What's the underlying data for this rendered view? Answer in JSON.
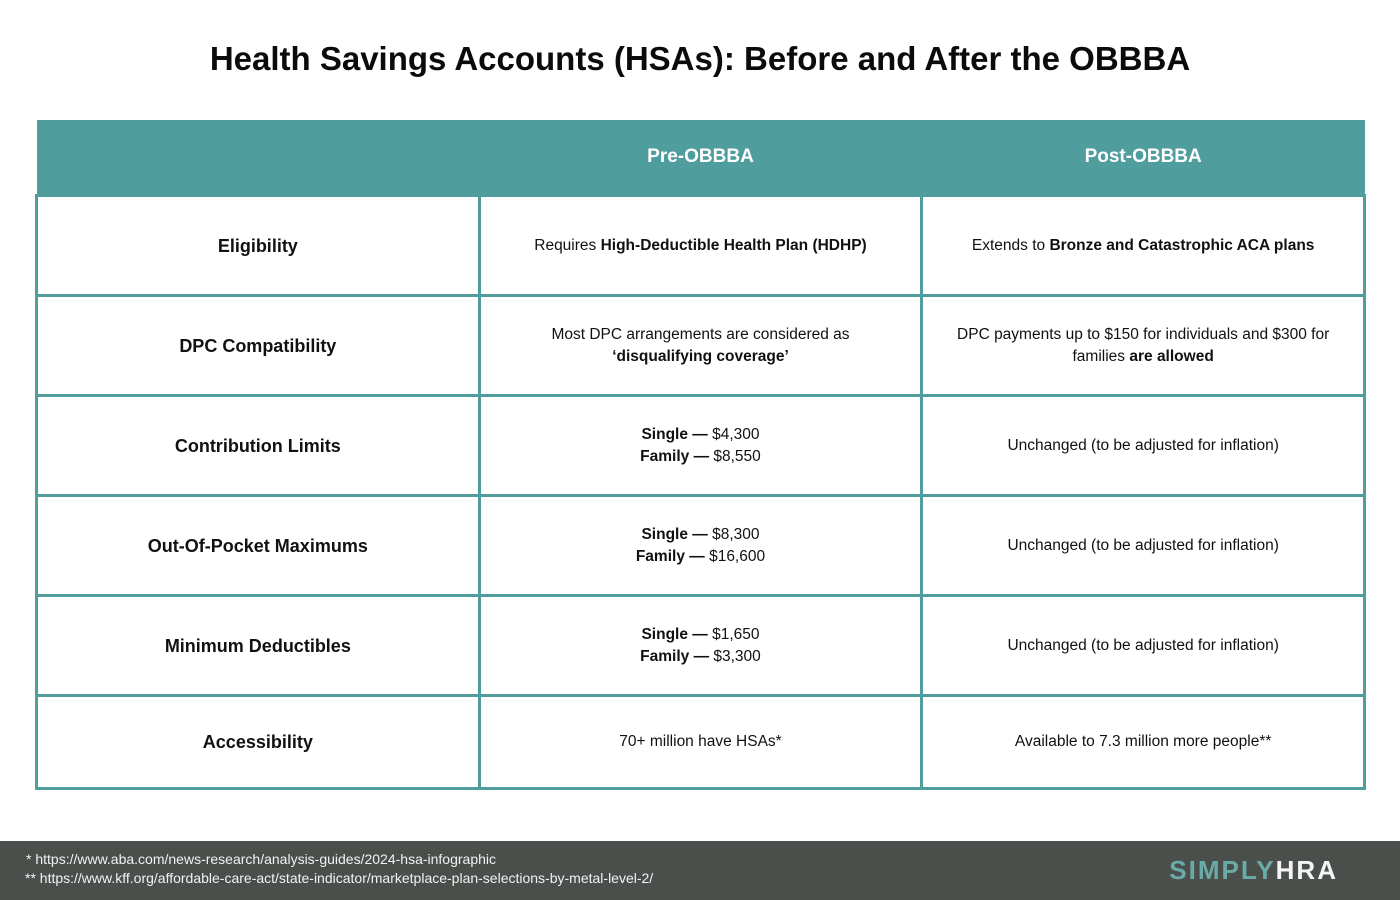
{
  "title": "Health Savings Accounts (HSAs): Before and After the OBBBA",
  "colors": {
    "accent": "#509d9e",
    "footer": "#4a4f4b"
  },
  "table": {
    "headers": [
      "",
      "Pre-OBBBA",
      "Post-OBBBA"
    ],
    "rows": [
      {
        "label": "Eligibility",
        "pre": [
          "Requires ",
          "High-Deductible Health Plan (HDHP)"
        ],
        "post": [
          "Extends to ",
          "Bronze and Catastrophic ACA plans"
        ]
      },
      {
        "label": "DPC Compatibility",
        "pre": [
          "Most DPC arrangements are considered as",
          "‘disqualifying coverage’"
        ],
        "post": [
          "DPC payments up to $150 for individuals and $300 for families ",
          "are allowed"
        ]
      },
      {
        "label": "Contribution Limits",
        "pre": [
          "Single —",
          " $4,300",
          "Family —",
          " $8,550"
        ],
        "post": "Unchanged (to be adjusted for inflation)"
      },
      {
        "label": "Out-Of-Pocket Maximums",
        "pre": [
          "Single —",
          " $8,300",
          "Family —",
          " $16,600"
        ],
        "post": "Unchanged (to be adjusted for inflation)"
      },
      {
        "label": "Minimum Deductibles",
        "pre": [
          "Single —",
          " $1,650",
          "Family —",
          " $3,300"
        ],
        "post": "Unchanged (to be adjusted for inflation)"
      },
      {
        "label": "Accessibility",
        "pre": "70+ million have HSAs*",
        "post": "Available to 7.3 million more people**"
      }
    ]
  },
  "footer": {
    "notes": [
      " * https://www.aba.com/news-research/analysis-guides/2024-hsa-infographic",
      "** https://www.kff.org/affordable-care-act/state-indicator/marketplace-plan-selections-by-metal-level-2/"
    ],
    "logo": [
      "SIMPLY",
      "HRA"
    ]
  }
}
